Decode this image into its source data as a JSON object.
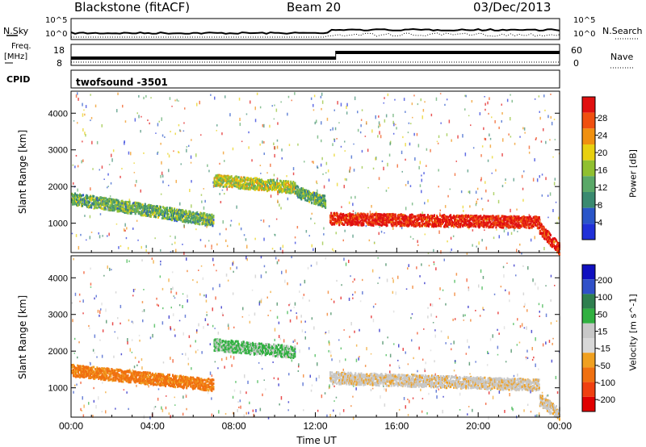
{
  "header": {
    "station": "Blackstone (fitACF)",
    "beam": "Beam 20",
    "date": "03/Dec/2013"
  },
  "top_panels": {
    "noise_label": "N.Sky",
    "noise_right_label": "N.Search",
    "noise_ticks": [
      "10^5",
      "10^0"
    ],
    "noise_right_ticks": [
      "10^5",
      "10^0"
    ],
    "freq_label": "Freq.",
    "freq_unit": "[MHz]",
    "freq_ticks": [
      "18",
      "8"
    ],
    "nave_label": "Nave",
    "nave_ticks": [
      "60",
      "0"
    ],
    "cpid_label": "CPID",
    "cpid_value": "twofsound  -3501"
  },
  "colors": {
    "power": [
      "#2030d8",
      "#2a55c8",
      "#3a8a70",
      "#5aa868",
      "#90c030",
      "#e8d010",
      "#f09010",
      "#f05010",
      "#e01010"
    ],
    "velocity": [
      "#1010c0",
      "#3050c8",
      "#2f7f4f",
      "#30b040",
      "#c8c8c8",
      "#d8d8d8",
      "#f0a020",
      "#f07010",
      "#f04010",
      "#e00000"
    ]
  },
  "chart_data": [
    {
      "type": "heatmap",
      "name": "Power",
      "ylabel": "Slant Range [km]",
      "y_ticks": [
        1000,
        2000,
        3000,
        4000
      ],
      "ylim": [
        200,
        4600
      ],
      "x_ticks": [
        "00:00",
        "04:00",
        "08:00",
        "12:00",
        "16:00",
        "20:00",
        "00:00"
      ],
      "xlim_hours": [
        0,
        24
      ],
      "colorbar": {
        "label": "Power [dB]",
        "ticks": [
          4,
          8,
          12,
          16,
          20,
          24,
          28
        ]
      },
      "bands": [
        {
          "start_h": 0,
          "end_h": 7,
          "range_km": [
            1700,
            1100
          ],
          "power_db": 12
        },
        {
          "start_h": 7,
          "end_h": 11,
          "range_km": [
            2200,
            2000
          ],
          "power_db": 16
        },
        {
          "start_h": 11,
          "end_h": 12.5,
          "range_km": [
            1900,
            1600
          ],
          "power_db": 12
        },
        {
          "start_h": 12.7,
          "end_h": 23,
          "range_km": [
            1150,
            1050
          ],
          "power_db": 28
        },
        {
          "start_h": 23,
          "end_h": 24,
          "range_km": [
            900,
            300
          ],
          "power_db": 28
        }
      ]
    },
    {
      "type": "heatmap",
      "name": "Velocity",
      "ylabel": "Slant Range [km]",
      "y_ticks": [
        1000,
        2000,
        3000,
        4000
      ],
      "ylim": [
        200,
        4600
      ],
      "x_ticks": [
        "00:00",
        "04:00",
        "08:00",
        "12:00",
        "16:00",
        "20:00",
        "00:00"
      ],
      "xlim_hours": [
        0,
        24
      ],
      "xlabel": "Time UT",
      "colorbar": {
        "label": "Velocity [m s^-1]",
        "ticks": [
          200,
          100,
          50,
          15,
          -15,
          -50,
          -100,
          -200
        ]
      },
      "bands": [
        {
          "start_h": 0,
          "end_h": 7,
          "range_km": [
            1500,
            1100
          ],
          "velocity": -60
        },
        {
          "start_h": 7,
          "end_h": 11,
          "range_km": [
            2200,
            2000
          ],
          "velocity": 20
        },
        {
          "start_h": 12.7,
          "end_h": 23,
          "range_km": [
            1300,
            1100
          ],
          "velocity": -5
        },
        {
          "start_h": 23,
          "end_h": 24,
          "range_km": [
            700,
            300
          ],
          "velocity": -5
        }
      ]
    }
  ]
}
